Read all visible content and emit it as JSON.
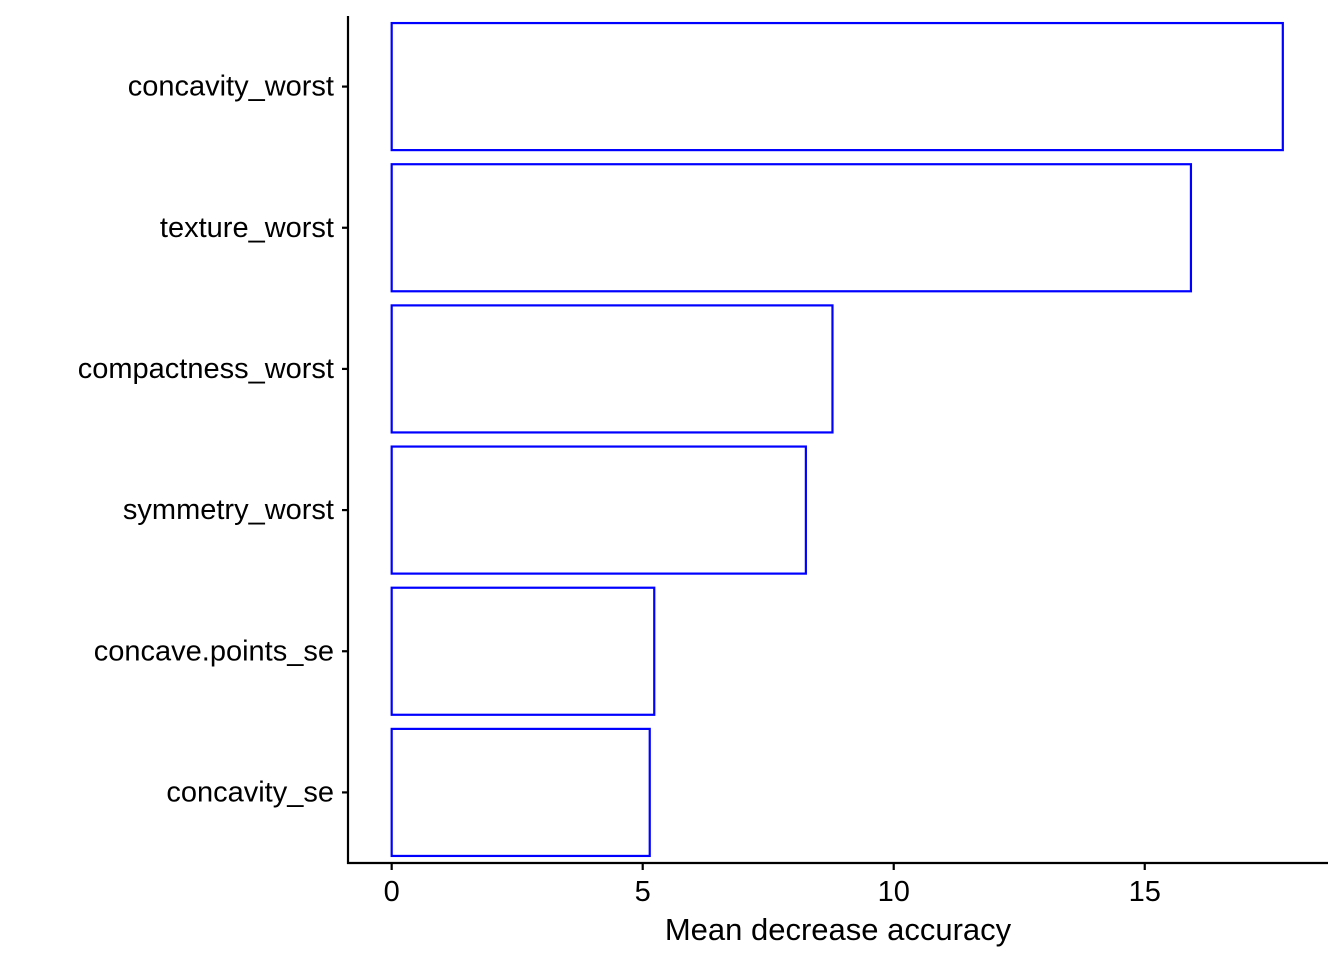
{
  "chart_data": {
    "type": "bar",
    "orientation": "horizontal",
    "categories": [
      "concavity_worst",
      "texture_worst",
      "compactness_worst",
      "symmetry_worst",
      "concave.points_se",
      "concavity_se"
    ],
    "values": [
      17.75,
      15.92,
      8.78,
      8.25,
      5.23,
      5.14
    ],
    "xlabel": "Mean decrease accuracy",
    "ylabel": "",
    "xlim": [
      -0.87,
      18.65
    ],
    "xticks": [
      0,
      5,
      10,
      15
    ],
    "xtick_labels": [
      "0",
      "5",
      "10",
      "15"
    ],
    "bar_fill": "#ffffff",
    "bar_outline": "#0000ff",
    "grid": false,
    "legend": "none"
  }
}
